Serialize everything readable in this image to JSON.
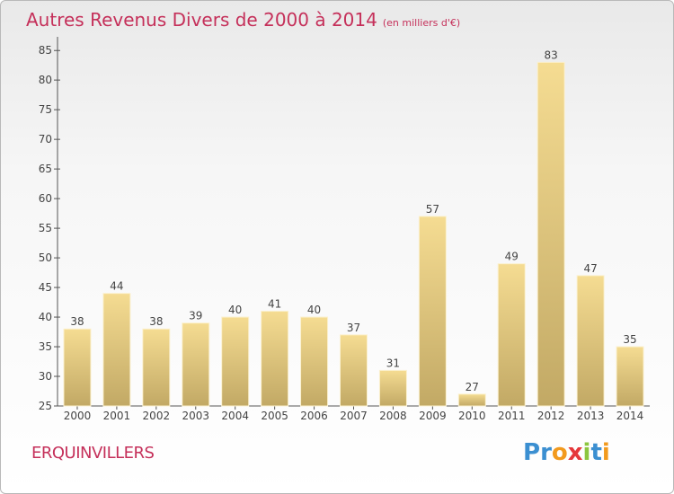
{
  "header": {
    "title": "Autres Revenus Divers de 2000 à 2014",
    "subtitle": "(en milliers d'€)"
  },
  "footer": {
    "commune": "ERQUINVILLERS",
    "logo_letters": [
      "P",
      "r",
      "o",
      "x",
      "i",
      "t",
      "i"
    ],
    "logo_colors": [
      "#3b8fd1",
      "#3b8fd1",
      "#f29a1e",
      "#e5383b",
      "#8cc63f",
      "#3b8fd1",
      "#f29a1e"
    ]
  },
  "chart_data": {
    "type": "bar",
    "categories": [
      "2000",
      "2001",
      "2002",
      "2003",
      "2004",
      "2005",
      "2006",
      "2007",
      "2008",
      "2009",
      "2010",
      "2011",
      "2012",
      "2013",
      "2014"
    ],
    "values": [
      38,
      44,
      38,
      39,
      40,
      41,
      40,
      37,
      31,
      57,
      27,
      49,
      83,
      47,
      35
    ],
    "data_labels": [
      "38",
      "44",
      "38",
      "39",
      "40",
      "41",
      "40",
      "37",
      "31",
      "57",
      "27",
      "49",
      "83",
      "47",
      "35"
    ],
    "ylim": [
      25,
      87
    ],
    "yticks": [
      25,
      30,
      35,
      40,
      45,
      50,
      55,
      60,
      65,
      70,
      75,
      80,
      85
    ],
    "ytick_labels": [
      "25",
      "30",
      "35",
      "40",
      "45",
      "50",
      "55",
      "60",
      "65",
      "70",
      "75",
      "80",
      "85"
    ],
    "grid": false,
    "bar_colors": {
      "top": "#f5dc92",
      "bottom": "#c2a965",
      "edge": "#fbf1cf"
    }
  }
}
